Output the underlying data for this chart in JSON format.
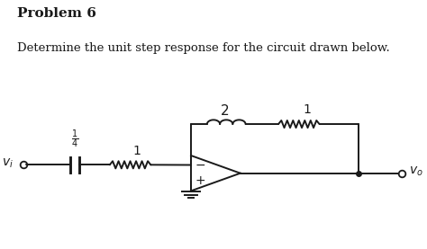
{
  "title": "Problem 6",
  "subtitle": "Determine the unit step response for the circuit drawn below.",
  "bg_color": "#ffffff",
  "ink_color": "#1a1a1a",
  "title_fontsize": 11,
  "subtitle_fontsize": 9.5,
  "fig_width": 4.74,
  "fig_height": 2.77,
  "dpi": 100
}
